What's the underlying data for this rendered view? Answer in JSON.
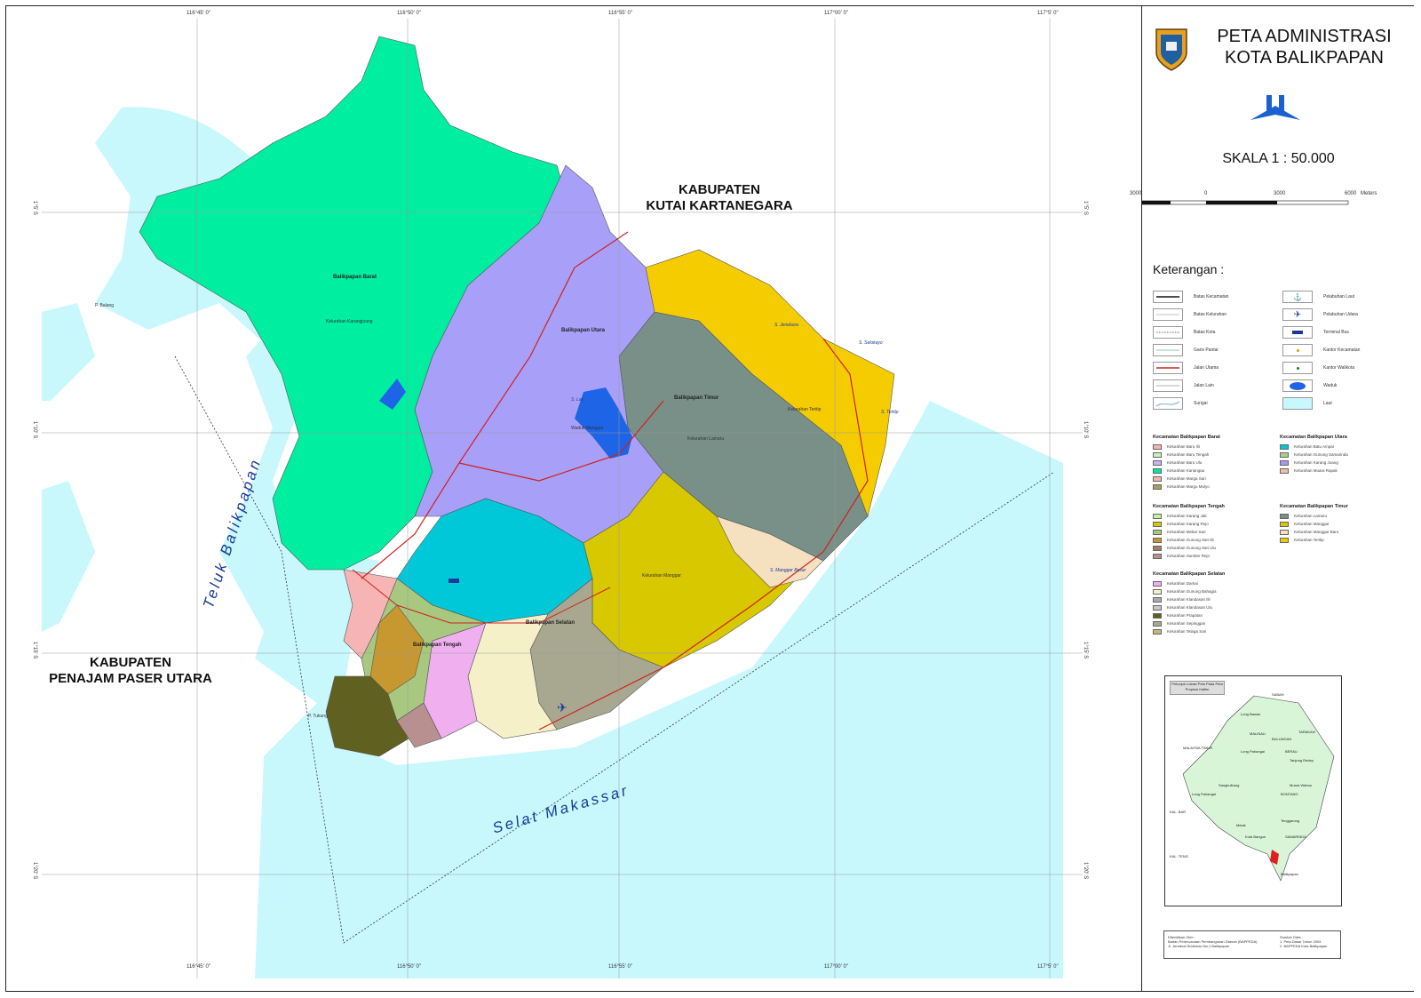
{
  "title": {
    "line1": "PETA ADMINISTRASI",
    "line2": "KOTA BALIKPAPAN"
  },
  "scale": {
    "label": "SKALA 1 : 50.000",
    "ticks": [
      "3000",
      "0",
      "3000",
      "6000",
      "Meters"
    ]
  },
  "coordinates": {
    "top_bottom": [
      "116°45' 0\"",
      "116°50' 0\"",
      "116°55' 0\"",
      "117°00' 0\"",
      "117°5' 0\""
    ],
    "left_right": [
      "1°5' S",
      "1°10' S",
      "1°15' S",
      "1°20' S"
    ]
  },
  "map_labels": {
    "kutai": {
      "line1": "KABUPATEN",
      "line2": "KUTAI KARTANEGARA"
    },
    "penajam": {
      "line1": "KABUPATEN",
      "line2": "PENAJAM PASER UTARA"
    },
    "teluk": "Teluk Balikpapan",
    "selat": "Selat Makassar",
    "districts": {
      "barat": "Balikpapan Barat",
      "utara": "Balikpapan Utara",
      "timur": "Balikpapan Timur",
      "tengah": "Balikpapan Tengah",
      "selatan": "Balikpapan Selatan"
    },
    "rivers": [
      "S. Jenebora",
      "S. Selokayo",
      "S. Teritip",
      "S. Lay",
      "S. Manggar Besar"
    ],
    "places": [
      "Kelurahan Karangjoang",
      "Kelurahan Teritip",
      "Kelurahan Lamaru",
      "Kelurahan Manggar",
      "Waduk Manggar",
      "P. Balang",
      "P. Tukung"
    ]
  },
  "legend": {
    "heading": "Keterangan :",
    "left": [
      "Batas Kecamatan",
      "Batas Kelurahan",
      "Batas Kota",
      "Garis Pantai",
      "Jalan Utama",
      "Jalan Lain",
      "Sungai"
    ],
    "right": [
      "Pelabuhan Laut",
      "Pelabuhan Udara",
      "Terminal Bus",
      "Kantor Kecamatan",
      "Kantor Walikota",
      "Waduk",
      "Laut"
    ]
  },
  "kecamatan": [
    {
      "title": "Kecamatan Balikpapan Barat",
      "items": [
        {
          "name": "Kelurahan Baru Ilir",
          "color": "#f7b4b4"
        },
        {
          "name": "Kelurahan Baru Tengah",
          "color": "#c8f0c0"
        },
        {
          "name": "Kelurahan Baru Ulu",
          "color": "#c8b4f0"
        },
        {
          "name": "Kelurahan Kariangau",
          "color": "#00e8a0"
        },
        {
          "name": "Kelurahan Marga Sari",
          "color": "#f5b8a8"
        },
        {
          "name": "Kelurahan Margo Mulyo",
          "color": "#a8a060"
        }
      ]
    },
    {
      "title": "Kecamatan Balikpapan Utara",
      "items": [
        {
          "name": "Kelurahan Batu Ampar",
          "color": "#00c8d8"
        },
        {
          "name": "Kelurahan Gunung Samarinda",
          "color": "#a8d090"
        },
        {
          "name": "Kelurahan Karang Joang",
          "color": "#a898f0"
        },
        {
          "name": "Kelurahan Muara Rapak",
          "color": "#f0c0a8"
        }
      ]
    },
    {
      "title": "Kecamatan Balikpapan Tengah",
      "items": [
        {
          "name": "Kelurahan Karang Jati",
          "color": "#c8f0a0"
        },
        {
          "name": "Kelurahan Karang Rejo",
          "color": "#d8c800"
        },
        {
          "name": "Kelurahan Mekar Sari",
          "color": "#a8c880"
        },
        {
          "name": "Kelurahan Gunung Sari Ilir",
          "color": "#c89830"
        },
        {
          "name": "Kelurahan Gunung Sari Ulu",
          "color": "#a08060"
        },
        {
          "name": "Kelurahan Sumber Rejo",
          "color": "#b89090"
        }
      ]
    },
    {
      "title": "Kecamatan Balikpapan Timur",
      "items": [
        {
          "name": "Kelurahan Lamaru",
          "color": "#789088"
        },
        {
          "name": "Kelurahan Manggar",
          "color": "#d8c800"
        },
        {
          "name": "Kelurahan Manggar Baru",
          "color": "#f5e0c0"
        },
        {
          "name": "Kelurahan Teritip",
          "color": "#f0c800"
        }
      ]
    },
    {
      "title": "Kecamatan Balikpapan Selatan",
      "items": [
        {
          "name": "Kelurahan Damai",
          "color": "#f0b0f0"
        },
        {
          "name": "Kelurahan Gunung Bahagia",
          "color": "#f5f0c8"
        },
        {
          "name": "Kelurahan Klandasan Ilir",
          "color": "#b0a8b0"
        },
        {
          "name": "Kelurahan Klandasan Ulu",
          "color": "#c8c8c8"
        },
        {
          "name": "Kelurahan Prapatan",
          "color": "#606020"
        },
        {
          "name": "Kelurahan Sepinggan",
          "color": "#a8a890"
        },
        {
          "name": "Kelurahan Telaga Sari",
          "color": "#c0b880"
        }
      ]
    }
  ],
  "inset": {
    "caption": "Petunjuk Lokasi Peta Pada Peta Propinsi Kaltim",
    "places": [
      "SABAH",
      "TARAKAN",
      "Long Bawan",
      "MALINAU",
      "BULUNGAN",
      "Long Pahangai",
      "BERAU",
      "Tanjung Redep",
      "MALAYSIA TIMUR",
      "Muara Wahau",
      "Sangkulirang",
      "BONTANG",
      "Long Pahangai",
      "Tenggarong",
      "Melak",
      "Kota Bangun",
      "SAMARINDA",
      "KAL. BAR",
      "KAL. TENG",
      "Balikpapan"
    ]
  },
  "credits": {
    "left": [
      "Diterbitkan Oleh :",
      "Badan Perencanaan Pembangunan Daerah (BAPPEDA)",
      "Jl. Jenderal Sudirman No.1 Balikpapan"
    ],
    "right": [
      "Sumber Data :",
      "1. Peta Dasar Tahun 2004",
      "2. BAPPEDA Kota Balikpapan"
    ]
  },
  "colors": {
    "sea": "#c8f8fc",
    "barat": "#00eea0",
    "utara": "#a8a0f8",
    "timur_grey": "#789088",
    "timur_yellow": "#f5cc00",
    "road": "#d02020"
  }
}
